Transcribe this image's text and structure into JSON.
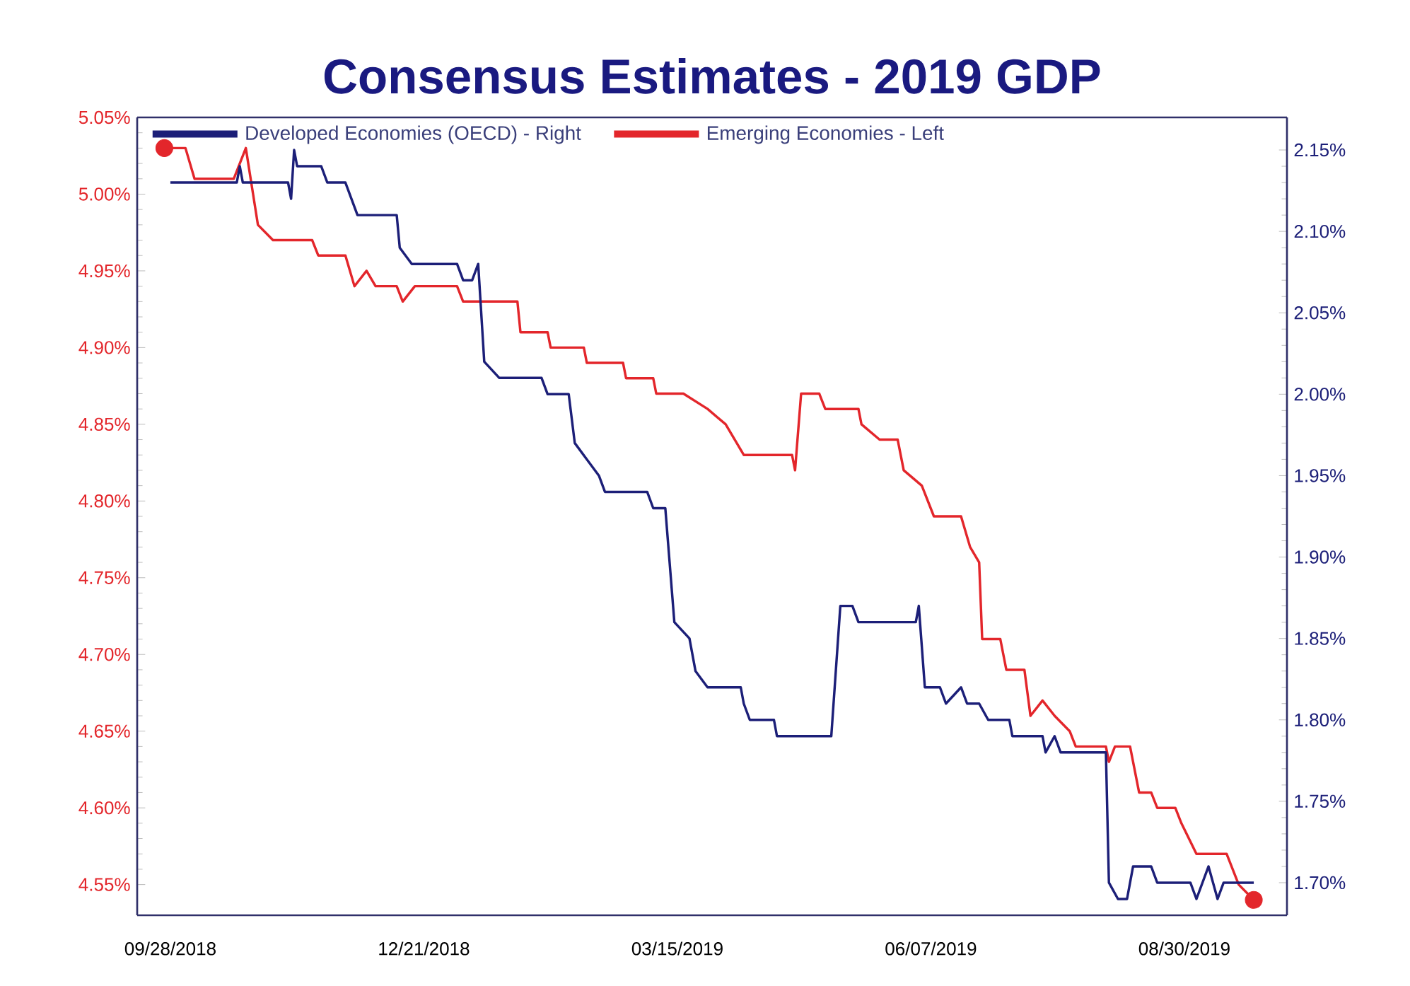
{
  "chart_data": {
    "type": "line",
    "title": "Consensus Estimates - 2019 GDP",
    "xlim": [
      "2018-09-17",
      "2019-10-03"
    ],
    "xticks": [
      {
        "value": "2018-09-28",
        "label": "09/28/2018"
      },
      {
        "value": "2018-12-21",
        "label": "12/21/2018"
      },
      {
        "value": "2019-03-15",
        "label": "03/15/2019"
      },
      {
        "value": "2019-06-07",
        "label": "06/07/2019"
      },
      {
        "value": "2019-08-30",
        "label": "08/30/2019"
      }
    ],
    "ylim": [
      4.53,
      5.05
    ],
    "yticks": [
      {
        "value": 4.55,
        "label": "4.55%"
      },
      {
        "value": 4.6,
        "label": "4.60%"
      },
      {
        "value": 4.65,
        "label": "4.65%"
      },
      {
        "value": 4.7,
        "label": "4.70%"
      },
      {
        "value": 4.75,
        "label": "4.75%"
      },
      {
        "value": 4.8,
        "label": "4.80%"
      },
      {
        "value": 4.85,
        "label": "4.85%"
      },
      {
        "value": 4.9,
        "label": "4.90%"
      },
      {
        "value": 4.95,
        "label": "4.95%"
      },
      {
        "value": 5.0,
        "label": "5.00%"
      },
      {
        "value": 5.05,
        "label": "5.05%"
      }
    ],
    "y2lim": [
      1.68,
      2.17
    ],
    "y2ticks": [
      {
        "value": 1.7,
        "label": "1.70%"
      },
      {
        "value": 1.75,
        "label": "1.75%"
      },
      {
        "value": 1.8,
        "label": "1.80%"
      },
      {
        "value": 1.85,
        "label": "1.85%"
      },
      {
        "value": 1.9,
        "label": "1.90%"
      },
      {
        "value": 1.95,
        "label": "1.95%"
      },
      {
        "value": 2.0,
        "label": "2.00%"
      },
      {
        "value": 2.05,
        "label": "2.05%"
      },
      {
        "value": 2.1,
        "label": "2.10%"
      },
      {
        "value": 2.15,
        "label": "2.15%"
      }
    ],
    "legend": "top left",
    "series": [
      {
        "name": "Developed Economies (OECD) - Right",
        "color": "#1c1f78",
        "axis": "y2",
        "x": [
          "2018-09-28",
          "2018-10-20",
          "2018-10-21",
          "2018-10-22",
          "2018-11-06",
          "2018-11-07",
          "2018-11-08",
          "2018-11-09",
          "2018-11-17",
          "2018-11-19",
          "2018-11-25",
          "2018-11-29",
          "2018-12-12",
          "2018-12-13",
          "2018-12-17",
          "2019-01-01",
          "2019-01-03",
          "2019-01-06",
          "2019-01-08",
          "2019-01-10",
          "2019-01-15",
          "2019-01-29",
          "2019-01-31",
          "2019-02-07",
          "2019-02-09",
          "2019-02-13",
          "2019-02-17",
          "2019-02-19",
          "2019-03-05",
          "2019-03-07",
          "2019-03-11",
          "2019-03-14",
          "2019-03-19",
          "2019-03-21",
          "2019-03-25",
          "2019-04-05",
          "2019-04-06",
          "2019-04-08",
          "2019-04-16",
          "2019-04-17",
          "2019-05-05",
          "2019-05-08",
          "2019-05-12",
          "2019-05-14",
          "2019-06-02",
          "2019-06-03",
          "2019-06-05",
          "2019-06-10",
          "2019-06-12",
          "2019-06-17",
          "2019-06-19",
          "2019-06-23",
          "2019-06-26",
          "2019-07-03",
          "2019-07-04",
          "2019-07-14",
          "2019-07-15",
          "2019-07-18",
          "2019-07-20",
          "2019-08-04",
          "2019-08-05",
          "2019-08-08",
          "2019-08-11",
          "2019-08-13",
          "2019-08-19",
          "2019-08-21",
          "2019-09-01",
          "2019-09-03",
          "2019-09-07",
          "2019-09-10",
          "2019-09-12",
          "2019-09-22"
        ],
        "values": [
          2.13,
          2.13,
          2.14,
          2.13,
          2.13,
          2.12,
          2.15,
          2.14,
          2.14,
          2.13,
          2.13,
          2.11,
          2.11,
          2.09,
          2.08,
          2.08,
          2.07,
          2.07,
          2.08,
          2.02,
          2.01,
          2.01,
          2.0,
          2.0,
          1.97,
          1.96,
          1.95,
          1.94,
          1.94,
          1.93,
          1.93,
          1.86,
          1.85,
          1.83,
          1.82,
          1.82,
          1.81,
          1.8,
          1.8,
          1.79,
          1.79,
          1.87,
          1.87,
          1.86,
          1.86,
          1.87,
          1.82,
          1.82,
          1.81,
          1.82,
          1.81,
          1.81,
          1.8,
          1.8,
          1.79,
          1.79,
          1.78,
          1.79,
          1.78,
          1.78,
          1.7,
          1.69,
          1.69,
          1.71,
          1.71,
          1.7,
          1.7,
          1.69,
          1.71,
          1.69,
          1.7,
          1.7
        ]
      },
      {
        "name": "Emerging Economies - Left",
        "color": "#e3262b",
        "x": [
          "2018-09-26",
          "2018-10-03",
          "2018-10-06",
          "2018-10-19",
          "2018-10-23",
          "2018-10-27",
          "2018-11-01",
          "2018-11-14",
          "2018-11-16",
          "2018-11-25",
          "2018-11-28",
          "2018-12-02",
          "2018-12-05",
          "2018-12-12",
          "2018-12-14",
          "2018-12-18",
          "2019-01-01",
          "2019-01-03",
          "2019-01-21",
          "2019-01-22",
          "2019-01-31",
          "2019-02-01",
          "2019-02-12",
          "2019-02-13",
          "2019-02-25",
          "2019-02-26",
          "2019-03-07",
          "2019-03-08",
          "2019-03-17",
          "2019-03-25",
          "2019-03-31",
          "2019-04-06",
          "2019-04-22",
          "2019-04-23",
          "2019-04-25",
          "2019-05-01",
          "2019-05-03",
          "2019-05-14",
          "2019-05-15",
          "2019-05-21",
          "2019-05-27",
          "2019-05-29",
          "2019-06-04",
          "2019-06-08",
          "2019-06-17",
          "2019-06-20",
          "2019-06-23",
          "2019-06-24",
          "2019-06-30",
          "2019-07-02",
          "2019-07-08",
          "2019-07-10",
          "2019-07-14",
          "2019-07-18",
          "2019-07-23",
          "2019-07-25",
          "2019-08-04",
          "2019-08-05",
          "2019-08-07",
          "2019-08-12",
          "2019-08-15",
          "2019-08-19",
          "2019-08-21",
          "2019-08-27",
          "2019-08-29",
          "2019-09-03",
          "2019-09-13",
          "2019-09-17",
          "2019-09-22"
        ],
        "values": [
          5.03,
          5.03,
          5.01,
          5.01,
          5.03,
          4.98,
          4.97,
          4.97,
          4.96,
          4.96,
          4.94,
          4.95,
          4.94,
          4.94,
          4.93,
          4.94,
          4.94,
          4.93,
          4.93,
          4.91,
          4.91,
          4.9,
          4.9,
          4.89,
          4.89,
          4.88,
          4.88,
          4.87,
          4.87,
          4.86,
          4.85,
          4.83,
          4.83,
          4.82,
          4.87,
          4.87,
          4.86,
          4.86,
          4.85,
          4.84,
          4.84,
          4.82,
          4.81,
          4.79,
          4.79,
          4.77,
          4.76,
          4.71,
          4.71,
          4.69,
          4.69,
          4.66,
          4.67,
          4.66,
          4.65,
          4.64,
          4.64,
          4.63,
          4.64,
          4.64,
          4.61,
          4.61,
          4.6,
          4.6,
          4.59,
          4.57,
          4.57,
          4.55,
          4.54
        ]
      },
      {
        "color": "#e3262b",
        "type": "scatter",
        "marker": "circle",
        "x": [
          "2018-09-26",
          "2019-09-22"
        ],
        "values": [
          5.03,
          4.54
        ]
      }
    ]
  }
}
